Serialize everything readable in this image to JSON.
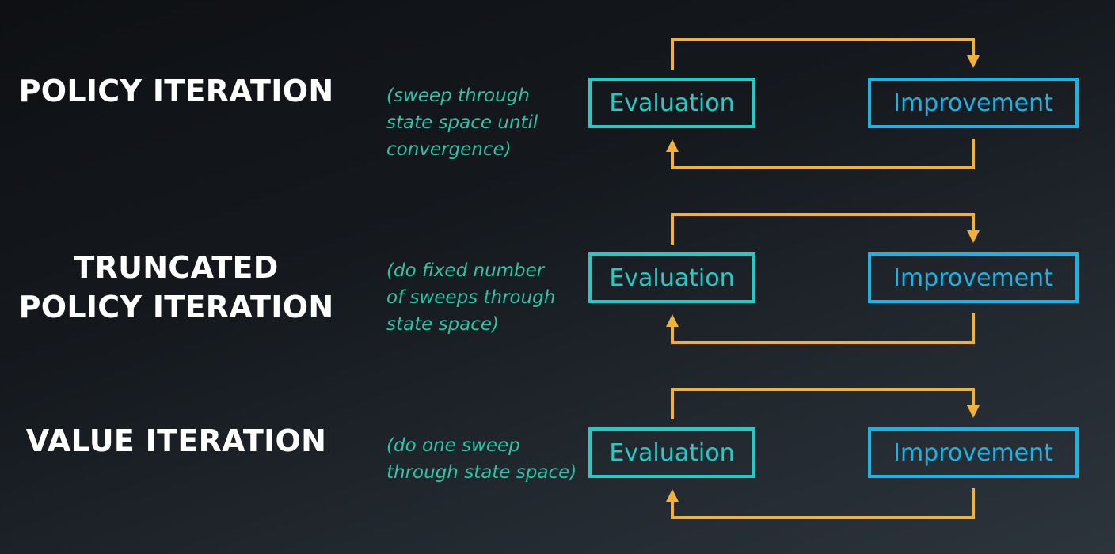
{
  "colors": {
    "arrow": "#f0b23a",
    "evaluation": "#22ccc4",
    "improvement": "#19b4e6",
    "note": "#2fc4a8",
    "title": "#ffffff"
  },
  "rows": [
    {
      "title_lines": [
        "POLICY ITERATION"
      ],
      "note_lines": [
        "(sweep through",
        "state space until",
        "convergence)"
      ],
      "evaluation_label": "Evaluation",
      "improvement_label": "Improvement"
    },
    {
      "title_lines": [
        "TRUNCATED",
        "POLICY ITERATION"
      ],
      "note_lines": [
        "(do fixed number",
        "of sweeps through",
        "state space)"
      ],
      "evaluation_label": "Evaluation",
      "improvement_label": "Improvement"
    },
    {
      "title_lines": [
        "VALUE ITERATION"
      ],
      "note_lines": [
        "(do one sweep",
        "through state space)"
      ],
      "evaluation_label": "Evaluation",
      "improvement_label": "Improvement"
    }
  ]
}
